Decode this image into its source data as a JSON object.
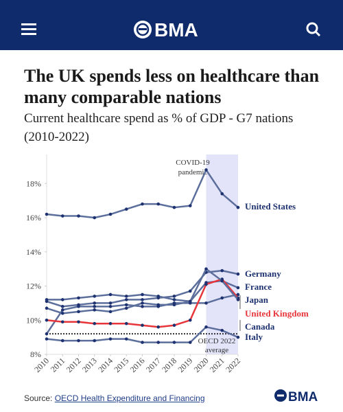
{
  "header": {
    "logo": "BMA"
  },
  "footer_logo": "BMA",
  "source": {
    "prefix": "Source:",
    "link": "OECD Health Expenditure and Financing"
  },
  "chart_data": {
    "type": "line",
    "title": "The UK spends less on healthcare than many comparable nations",
    "subtitle": "Current healthcare spend as % of GDP - G7 nations (2010-2022)",
    "x": [
      2010,
      2011,
      2012,
      2013,
      2014,
      2015,
      2016,
      2017,
      2018,
      2019,
      2020,
      2021,
      2022
    ],
    "xlim": [
      2010,
      2022
    ],
    "xticks": [
      2010,
      2011,
      2012,
      2013,
      2014,
      2015,
      2016,
      2017,
      2018,
      2019,
      2020,
      2021,
      2022
    ],
    "ylim": [
      8,
      19.7
    ],
    "yticks": [
      {
        "value": 8,
        "label": "8%"
      },
      {
        "value": 10,
        "label": "10%"
      },
      {
        "value": 12,
        "label": "12%"
      },
      {
        "value": 14,
        "label": "14%"
      },
      {
        "value": 16,
        "label": "16%"
      },
      {
        "value": 18,
        "label": "18%"
      }
    ],
    "grid": false,
    "series": [
      {
        "name": "United States",
        "color": "#5b6e9c",
        "label_color": "#1e3170",
        "values": [
          16.2,
          16.1,
          16.1,
          16.0,
          16.2,
          16.5,
          16.8,
          16.8,
          16.6,
          16.7,
          18.8,
          17.4,
          16.6
        ]
      },
      {
        "name": "Germany",
        "color": "#5b6e9c",
        "label_color": "#1e3170",
        "values": [
          11.1,
          10.8,
          10.9,
          11.0,
          11.0,
          11.2,
          11.2,
          11.3,
          11.4,
          11.7,
          12.8,
          12.9,
          12.7
        ]
      },
      {
        "name": "France",
        "color": "#5b6e9c",
        "label_color": "#1e3170",
        "values": [
          11.2,
          11.2,
          11.3,
          11.4,
          11.5,
          11.4,
          11.5,
          11.4,
          11.2,
          11.1,
          12.2,
          12.3,
          11.9
        ]
      },
      {
        "name": "Japan",
        "color": "#5b6e9c",
        "label_color": "#1e3170",
        "values": [
          9.2,
          10.6,
          10.8,
          10.8,
          10.8,
          10.9,
          10.8,
          10.8,
          11.0,
          11.0,
          11.0,
          11.3,
          11.5
        ]
      },
      {
        "name": "United Kingdom",
        "color": "#e8353a",
        "label_color": "#e8353a",
        "values": [
          10.0,
          9.9,
          9.9,
          9.8,
          9.8,
          9.8,
          9.7,
          9.6,
          9.7,
          10.0,
          12.1,
          12.4,
          11.3
        ]
      },
      {
        "name": "Canada",
        "color": "#5b6e9c",
        "label_color": "#1e3170",
        "values": [
          10.7,
          10.4,
          10.5,
          10.6,
          10.5,
          10.7,
          11.0,
          10.9,
          10.9,
          11.1,
          13.0,
          12.3,
          11.2
        ]
      },
      {
        "name": "Italy",
        "color": "#5b6e9c",
        "label_color": "#1e3170",
        "values": [
          8.9,
          8.8,
          8.8,
          8.8,
          8.9,
          8.9,
          8.7,
          8.7,
          8.7,
          8.7,
          9.6,
          9.4,
          9.0
        ]
      }
    ],
    "highlight": {
      "from": 2020,
      "to": 2022,
      "color": "#e3e3fa",
      "label": [
        "COVID-19",
        "pandemic"
      ]
    },
    "reference_line": {
      "value": 9.2,
      "color": "#333333",
      "label": [
        "OECD 2022",
        "average"
      ]
    }
  }
}
